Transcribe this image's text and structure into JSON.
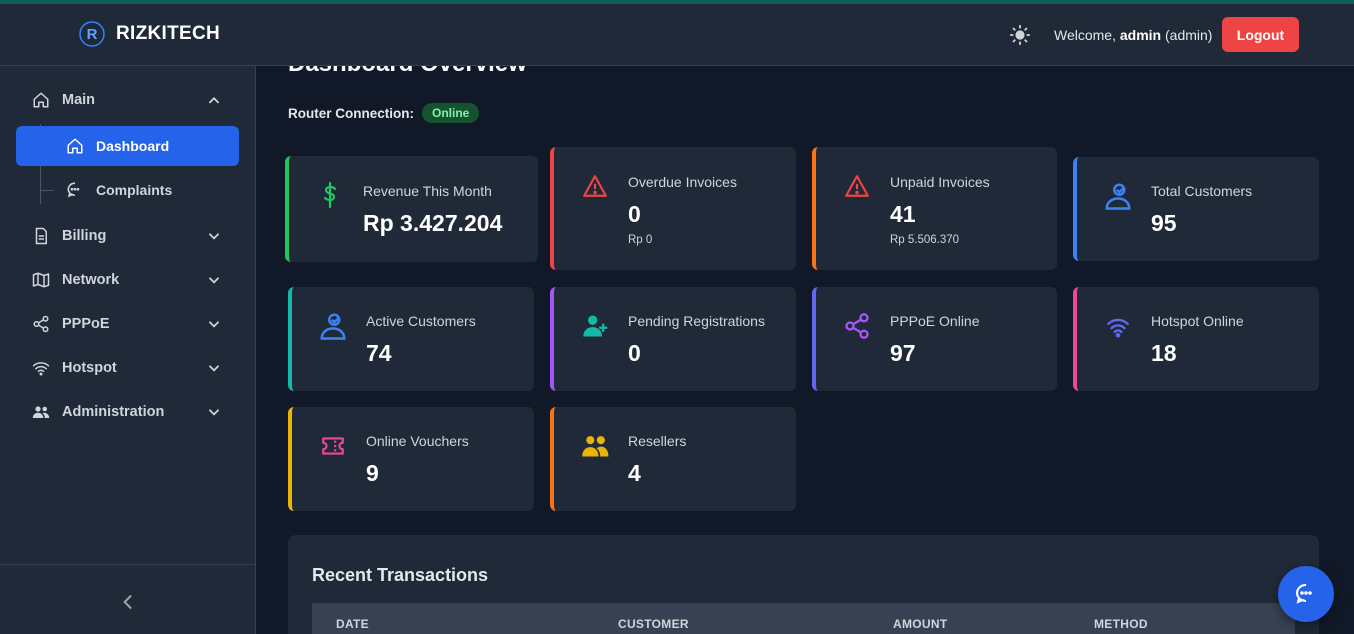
{
  "header": {
    "brand": "RIZKITECH",
    "welcome_prefix": "Welcome,",
    "user": "admin",
    "role": "(admin)",
    "logout_label": "Logout"
  },
  "sidebar": {
    "main_label": "Main",
    "dashboard_label": "Dashboard",
    "complaints_label": "Complaints",
    "items": [
      "Billing",
      "Network",
      "PPPoE",
      "Hotspot",
      "Administration"
    ]
  },
  "main": {
    "title": "Dashboard Overview",
    "router_label": "Router Connection:",
    "router_status": "Online"
  },
  "cards": [
    {
      "label": "Revenue This Month",
      "value": "Rp 3.427.204",
      "sub": "",
      "color": "#22c55e",
      "icon": "dollar-icon"
    },
    {
      "label": "Overdue Invoices",
      "value": "0",
      "sub": "Rp 0",
      "color": "#ef4444",
      "icon": "warning-icon"
    },
    {
      "label": "Unpaid Invoices",
      "value": "41",
      "sub": "Rp 5.506.370",
      "color": "#f97316",
      "icon": "warning-icon"
    },
    {
      "label": "Total Customers",
      "value": "95",
      "sub": "",
      "color": "#3b82f6",
      "icon": "user-icon"
    },
    {
      "label": "Active Customers",
      "value": "74",
      "sub": "",
      "color": "#14b8a6",
      "icon": "user-icon"
    },
    {
      "label": "Pending Registrations",
      "value": "0",
      "sub": "",
      "color": "#a855f7",
      "icon": "user-plus-icon"
    },
    {
      "label": "PPPoE Online",
      "value": "97",
      "sub": "",
      "color": "#6366f1",
      "icon": "share-icon"
    },
    {
      "label": "Hotspot Online",
      "value": "18",
      "sub": "",
      "color": "#ec4899",
      "icon": "wifi-icon"
    },
    {
      "label": "Online Vouchers",
      "value": "9",
      "sub": "",
      "color": "#eab308",
      "icon": "ticket-icon"
    },
    {
      "label": "Resellers",
      "value": "4",
      "sub": "",
      "color": "#f97316",
      "icon": "users-icon"
    }
  ],
  "transactions": {
    "title": "Recent Transactions",
    "columns": [
      "DATE",
      "CUSTOMER",
      "AMOUNT",
      "METHOD"
    ]
  }
}
